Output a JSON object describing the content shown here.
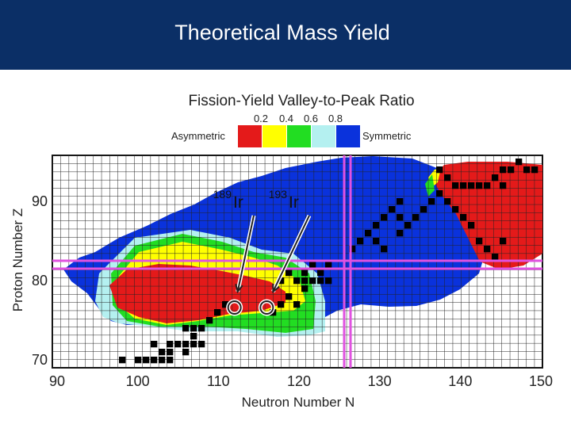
{
  "slide": {
    "title": "Theoretical Mass Yield"
  },
  "chart_data": {
    "type": "heatmap",
    "title": "Fission-Yield Valley-to-Peak Ratio",
    "xlabel": "Neutron Number N",
    "ylabel": "Proton Number Z",
    "xlim": [
      90,
      150
    ],
    "ylim": [
      70,
      96
    ],
    "x_ticks": [
      "90",
      "100",
      "110",
      "120",
      "130",
      "140",
      "150"
    ],
    "y_ticks": [
      "70",
      "80",
      "90"
    ],
    "grid": true,
    "color_scale": {
      "left_label": "Asymmetric",
      "right_label": "Symmetric",
      "ticks": [
        "0.2",
        "0.4",
        "0.6",
        "0.8"
      ],
      "bins": [
        {
          "range": "0-0.2",
          "color": "#e41a1a"
        },
        {
          "range": "0.2-0.4",
          "color": "#ffff00"
        },
        {
          "range": "0.4-0.6",
          "color": "#22dd22"
        },
        {
          "range": "0.6-0.8",
          "color": "#b4f0f0"
        },
        {
          "range": "0.8-1.0",
          "color": "#0a32dc"
        }
      ]
    },
    "reference_lines": {
      "proton_z": [
        82
      ],
      "neutron_n": [
        126
      ],
      "line_color": "#e052e0"
    },
    "annotations": [
      {
        "label": "Ir",
        "mass": "189",
        "N": 112,
        "Z": 77
      },
      {
        "label": "Ir",
        "mass": "193",
        "N": 116,
        "Z": 77
      }
    ]
  }
}
